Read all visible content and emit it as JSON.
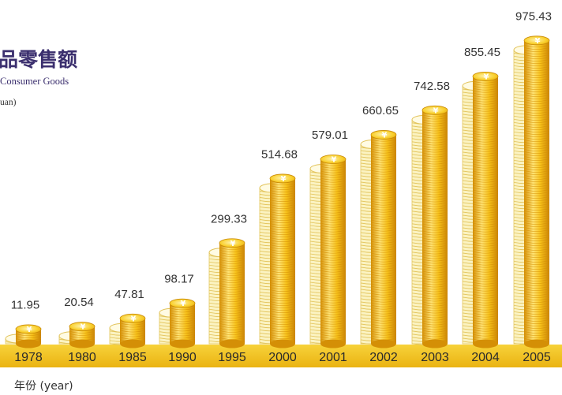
{
  "header": {
    "title_cn": "品零售额",
    "title_en": "Consumer Goods",
    "unit": "uan)"
  },
  "axis": {
    "xlabel": "年份 (year)"
  },
  "colors": {
    "band": "#f2c318",
    "coin_light": "#ffe476",
    "coin_mid": "#f7c21a",
    "coin_dark": "#d48f06",
    "outline_coin": "#fbf3c2",
    "value_text": "#333333",
    "year_text": "#2b2b2b"
  },
  "chart_data": {
    "type": "bar",
    "style": "stacked gold coin columns with yuan sign",
    "categories": [
      "1978",
      "1980",
      "1985",
      "1990",
      "1995",
      "2000",
      "2001",
      "2002",
      "2003",
      "2004",
      "2005"
    ],
    "values": [
      11.95,
      20.54,
      47.81,
      98.17,
      299.33,
      514.68,
      579.01,
      660.65,
      742.58,
      855.45,
      975.43
    ],
    "value_labels": [
      "11.95",
      "20.54",
      "47.81",
      "98.17",
      "299.33",
      "514.68",
      "579.01",
      "660.65",
      "742.58",
      "855.45",
      "975.43"
    ],
    "xlabel": "年份 (year)",
    "ylim": [
      0,
      1000
    ],
    "grid": false,
    "legend": "none"
  }
}
